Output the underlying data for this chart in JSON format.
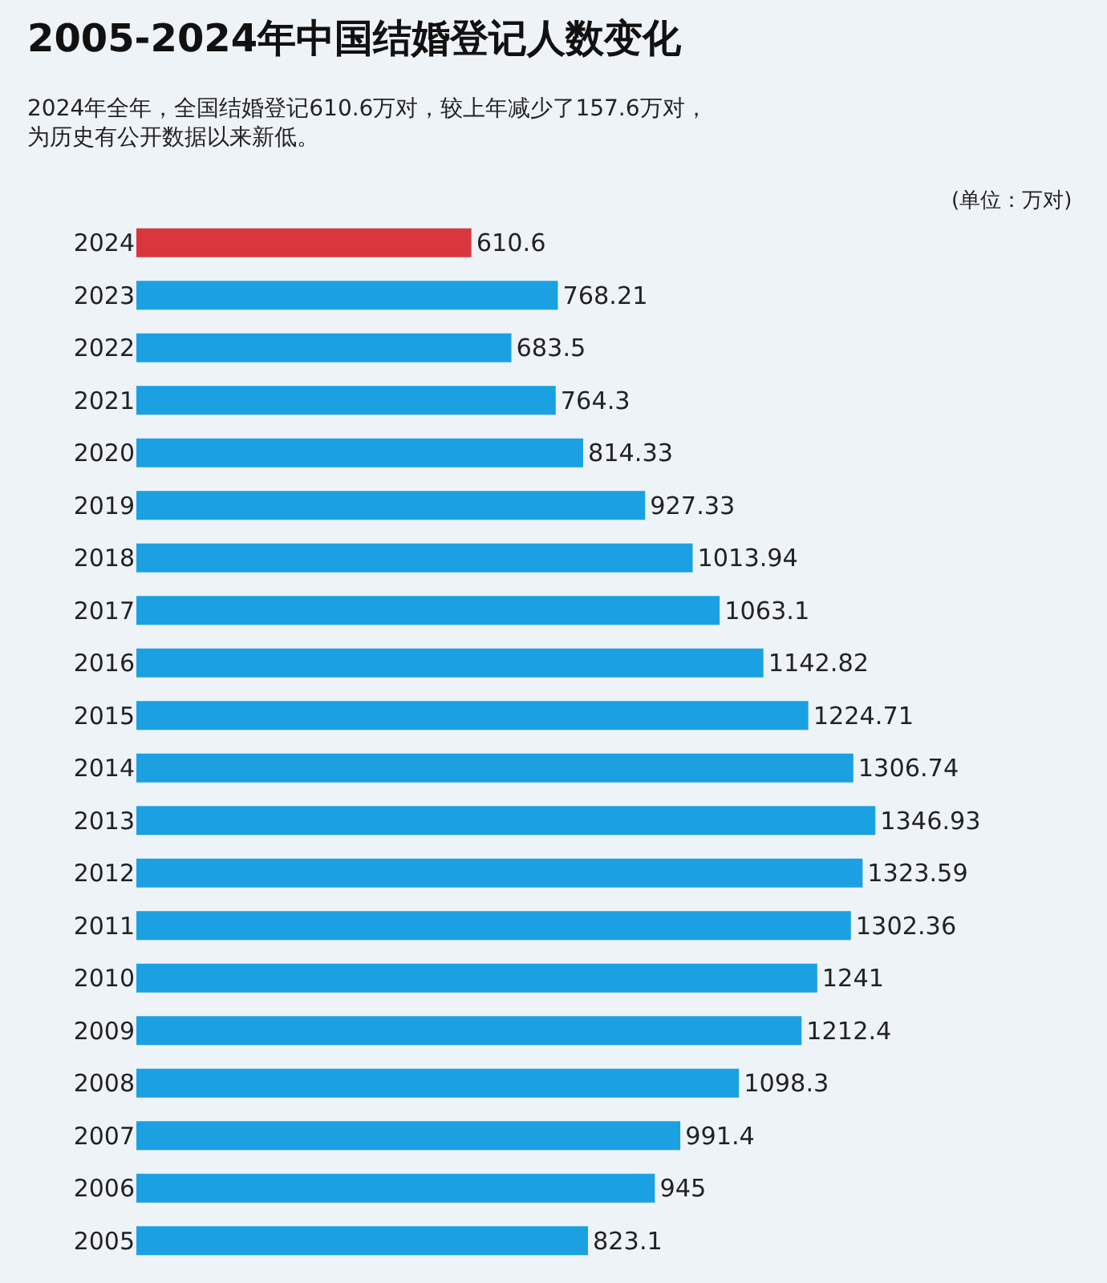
{
  "chart_data": {
    "type": "bar",
    "orientation": "horizontal",
    "tick_labels": "y",
    "data_labels": true,
    "title": "2005-2024年中国结婚登记人数变化",
    "subtitle": "2024年全年，全国结婚登记610.6万对，较上年减少了157.6万对，为历史有公开数据以来新低。",
    "annotations": [
      "(单位：万对)"
    ],
    "categories": [
      "2024",
      "2023",
      "2022",
      "2021",
      "2020",
      "2019",
      "2018",
      "2017",
      "2016",
      "2015",
      "2014",
      "2013",
      "2012",
      "2011",
      "2010",
      "2009",
      "2008",
      "2007",
      "2006",
      "2005"
    ],
    "values": [
      610.6,
      768.21,
      683.5,
      764.3,
      814.33,
      927.33,
      1013.94,
      1063.1,
      1142.82,
      1224.71,
      1306.74,
      1346.93,
      1323.59,
      1302.36,
      1241,
      1212.4,
      1098.3,
      991.4,
      945,
      823.1
    ],
    "colors": [
      "#d9363e",
      "#1ba1e2",
      "#1ba1e2",
      "#1ba1e2",
      "#1ba1e2",
      "#1ba1e2",
      "#1ba1e2",
      "#1ba1e2",
      "#1ba1e2",
      "#1ba1e2",
      "#1ba1e2",
      "#1ba1e2",
      "#1ba1e2",
      "#1ba1e2",
      "#1ba1e2",
      "#1ba1e2",
      "#1ba1e2",
      "#1ba1e2",
      "#1ba1e2",
      "#1ba1e2"
    ]
  }
}
